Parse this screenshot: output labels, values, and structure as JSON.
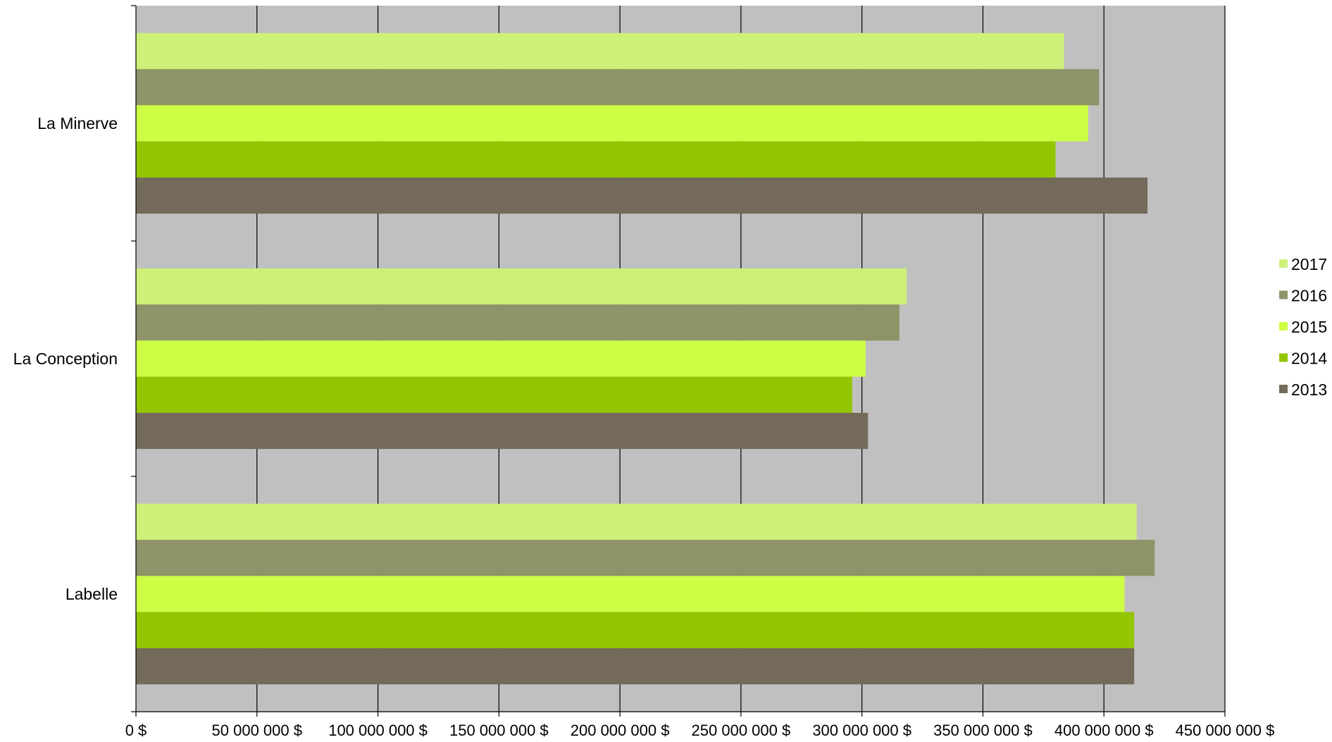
{
  "chart_data": {
    "type": "bar",
    "orientation": "horizontal",
    "categories": [
      "La Minerve",
      "La Conception",
      "Labelle"
    ],
    "series": [
      {
        "name": "2017",
        "color": "#ccf078",
        "values": [
          383500000,
          318500000,
          413500000
        ]
      },
      {
        "name": "2016",
        "color": "#8f9468",
        "values": [
          398000000,
          315500000,
          421000000
        ]
      },
      {
        "name": "2015",
        "color": "#ccff44",
        "values": [
          393500000,
          301500000,
          408500000
        ]
      },
      {
        "name": "2014",
        "color": "#93c500",
        "values": [
          380000000,
          296000000,
          412500000
        ]
      },
      {
        "name": "2013",
        "color": "#736a5a",
        "values": [
          418000000,
          302500000,
          412500000
        ]
      }
    ],
    "xlim": [
      0,
      450000000
    ],
    "xticks": [
      0,
      50000000,
      100000000,
      150000000,
      200000000,
      250000000,
      300000000,
      350000000,
      400000000,
      450000000
    ],
    "xtick_labels": [
      "0 $",
      "50 000 000 $",
      "100 000 000 $",
      "150 000 000 $",
      "200 000 000 $",
      "250 000 000 $",
      "300 000 000 $",
      "350 000 000 $",
      "400 000 000 $",
      "450 000 000 $"
    ],
    "grid": true,
    "legend_position": "right",
    "plot_background": "#c0c0c0"
  }
}
